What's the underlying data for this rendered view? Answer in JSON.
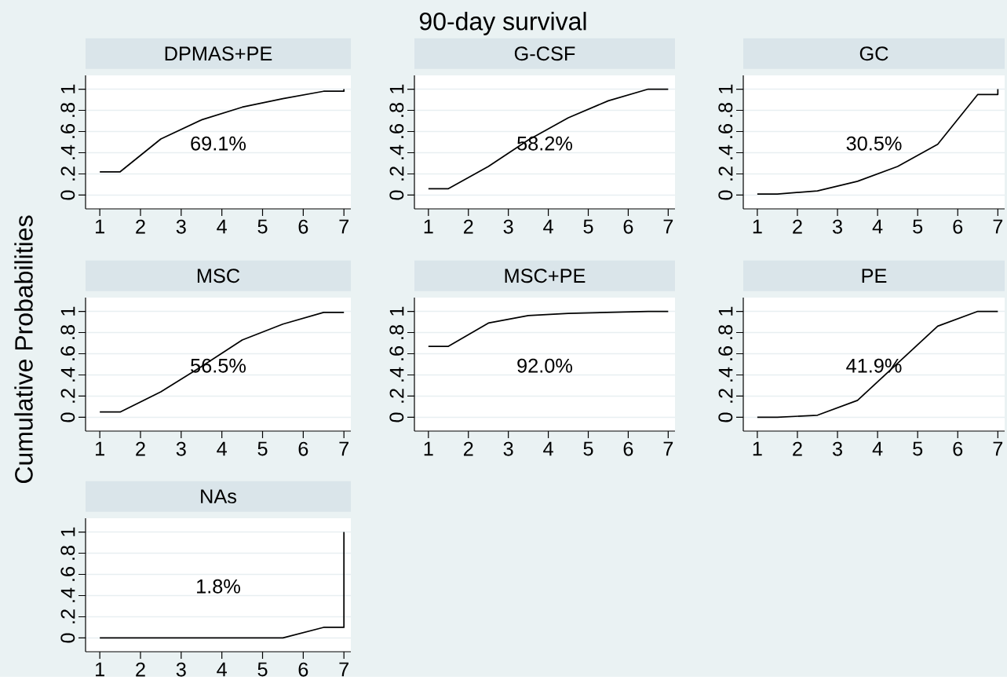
{
  "chart_data": [
    {
      "type": "other",
      "title": "90-day survival",
      "ylabel": "Cumulative Probabilities"
    },
    {
      "type": "line",
      "title": "DPMAS+PE",
      "x": [
        1,
        1.5,
        2.5,
        3.5,
        4.5,
        5.5,
        6.5,
        7,
        7
      ],
      "values": [
        0.22,
        0.22,
        0.53,
        0.71,
        0.83,
        0.91,
        0.98,
        0.98,
        1
      ],
      "color": "#000000",
      "line_style": "solid",
      "grid": "y",
      "xlim": [
        0.65,
        7.17
      ],
      "ylim": [
        -0.13,
        1.13
      ],
      "xticks": [
        1,
        2,
        3,
        4,
        5,
        6,
        7
      ],
      "yticks": [
        0,
        {
          "value": 0.2,
          "label": ".2"
        },
        {
          "value": 0.4,
          "label": ".4"
        },
        {
          "value": 0.6,
          "label": ".6"
        },
        {
          "value": 0.8,
          "label": ".8"
        },
        1
      ],
      "annotations": [
        "69.1%"
      ]
    },
    {
      "type": "line",
      "title": "G-CSF",
      "x": [
        1,
        1.5,
        2.5,
        3.5,
        4.5,
        5.5,
        6.5,
        7
      ],
      "values": [
        0.06,
        0.06,
        0.27,
        0.52,
        0.73,
        0.89,
        1,
        1
      ],
      "color": "#000000",
      "line_style": "solid",
      "grid": "y",
      "xlim": [
        0.65,
        7.17
      ],
      "ylim": [
        -0.13,
        1.13
      ],
      "xticks": [
        1,
        2,
        3,
        4,
        5,
        6,
        7
      ],
      "yticks": [
        0,
        {
          "value": 0.2,
          "label": ".2"
        },
        {
          "value": 0.4,
          "label": ".4"
        },
        {
          "value": 0.6,
          "label": ".6"
        },
        {
          "value": 0.8,
          "label": ".8"
        },
        1
      ],
      "annotations": [
        "58.2%"
      ]
    },
    {
      "type": "line",
      "title": "GC",
      "x": [
        1,
        1.5,
        2.5,
        3.5,
        4.5,
        5.5,
        6.5,
        7,
        7
      ],
      "values": [
        0.01,
        0.01,
        0.04,
        0.13,
        0.27,
        0.48,
        0.95,
        0.95,
        1
      ],
      "color": "#000000",
      "line_style": "solid",
      "grid": "y",
      "xlim": [
        0.65,
        7.17
      ],
      "ylim": [
        -0.13,
        1.13
      ],
      "xticks": [
        1,
        2,
        3,
        4,
        5,
        6,
        7
      ],
      "yticks": [
        0,
        {
          "value": 0.2,
          "label": ".2"
        },
        {
          "value": 0.4,
          "label": ".4"
        },
        {
          "value": 0.6,
          "label": ".6"
        },
        {
          "value": 0.8,
          "label": ".8"
        },
        1
      ],
      "annotations": [
        "30.5%"
      ]
    },
    {
      "type": "line",
      "title": "MSC",
      "x": [
        1,
        1.5,
        2.5,
        3.5,
        4.5,
        5.5,
        6.5,
        7
      ],
      "values": [
        0.05,
        0.05,
        0.24,
        0.48,
        0.73,
        0.88,
        0.99,
        0.99
      ],
      "color": "#000000",
      "line_style": "solid",
      "grid": "y",
      "xlim": [
        0.65,
        7.17
      ],
      "ylim": [
        -0.13,
        1.13
      ],
      "xticks": [
        1,
        2,
        3,
        4,
        5,
        6,
        7
      ],
      "yticks": [
        0,
        {
          "value": 0.2,
          "label": ".2"
        },
        {
          "value": 0.4,
          "label": ".4"
        },
        {
          "value": 0.6,
          "label": ".6"
        },
        {
          "value": 0.8,
          "label": ".8"
        },
        1
      ],
      "annotations": [
        "56.5%"
      ]
    },
    {
      "type": "line",
      "title": "MSC+PE",
      "x": [
        1,
        1.5,
        2.5,
        3.5,
        4.5,
        5.5,
        6.5,
        7
      ],
      "values": [
        0.67,
        0.67,
        0.89,
        0.96,
        0.98,
        0.99,
        1,
        1
      ],
      "color": "#000000",
      "line_style": "solid",
      "grid": "y",
      "xlim": [
        0.65,
        7.17
      ],
      "ylim": [
        -0.13,
        1.13
      ],
      "xticks": [
        1,
        2,
        3,
        4,
        5,
        6,
        7
      ],
      "yticks": [
        0,
        {
          "value": 0.2,
          "label": ".2"
        },
        {
          "value": 0.4,
          "label": ".4"
        },
        {
          "value": 0.6,
          "label": ".6"
        },
        {
          "value": 0.8,
          "label": ".8"
        },
        1
      ],
      "annotations": [
        "92.0%"
      ]
    },
    {
      "type": "line",
      "title": "PE",
      "x": [
        1,
        1.5,
        2.5,
        3.5,
        4.5,
        5.5,
        6.5,
        7
      ],
      "values": [
        0,
        0,
        0.02,
        0.16,
        0.51,
        0.86,
        1,
        1
      ],
      "color": "#000000",
      "line_style": "solid",
      "grid": "y",
      "xlim": [
        0.65,
        7.17
      ],
      "ylim": [
        -0.13,
        1.13
      ],
      "xticks": [
        1,
        2,
        3,
        4,
        5,
        6,
        7
      ],
      "yticks": [
        0,
        {
          "value": 0.2,
          "label": ".2"
        },
        {
          "value": 0.4,
          "label": ".4"
        },
        {
          "value": 0.6,
          "label": ".6"
        },
        {
          "value": 0.8,
          "label": ".8"
        },
        1
      ],
      "annotations": [
        "41.9%"
      ]
    },
    {
      "type": "line",
      "title": "NAs",
      "x": [
        1,
        1.5,
        2.5,
        3.5,
        4.5,
        5.5,
        6.5,
        7,
        7
      ],
      "values": [
        0,
        0,
        0,
        0,
        0,
        0,
        0.1,
        0.1,
        1
      ],
      "color": "#000000",
      "line_style": "solid",
      "grid": "y",
      "xlim": [
        0.65,
        7.17
      ],
      "ylim": [
        -0.13,
        1.13
      ],
      "xticks": [
        1,
        2,
        3,
        4,
        5,
        6,
        7
      ],
      "yticks": [
        0,
        {
          "value": 0.2,
          "label": ".2"
        },
        {
          "value": 0.4,
          "label": ".4"
        },
        {
          "value": 0.6,
          "label": ".6"
        },
        {
          "value": 0.8,
          "label": ".8"
        },
        1
      ],
      "annotations": [
        "1.8%"
      ]
    }
  ]
}
